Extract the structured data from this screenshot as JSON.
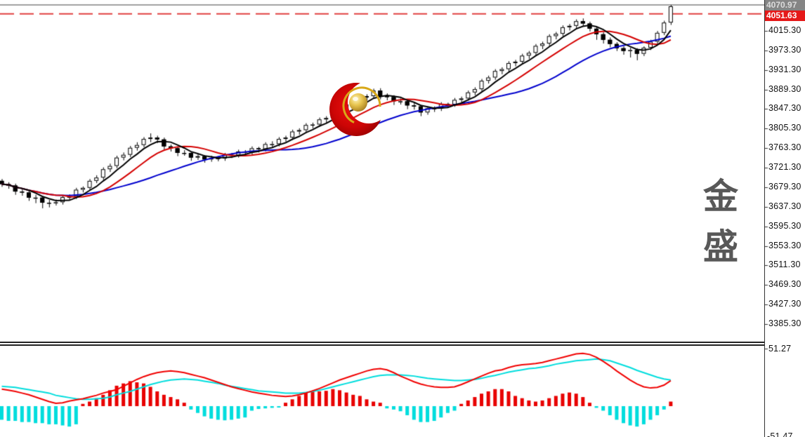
{
  "window": {
    "background": "#ffffff"
  },
  "watermark": {
    "text": "金盛",
    "logo": "red-crescent-gold-ball"
  },
  "main_axis": {
    "current_price_label": "4070.97",
    "hline_price_label": "4051.63",
    "tick_labels": [
      "4015.30",
      "3973.30",
      "3931.30",
      "3889.30",
      "3847.30",
      "3805.30",
      "3763.30",
      "3721.30",
      "3679.30",
      "3637.30",
      "3595.30",
      "3553.30",
      "3511.30",
      "3469.30",
      "3427.30",
      "3385.30"
    ]
  },
  "sub_axis": {
    "top_label": "51.27",
    "bottom_label_partial": "-51.47"
  },
  "colors": {
    "up_candle_fill": "#ffffff",
    "down_candle_fill": "#000000",
    "candle_outline": "#000000",
    "ma_fast": "#000000",
    "ma_mid": "#d40000",
    "ma_slow": "#0000cd",
    "dashed_hline": "#e04040",
    "current_price_line": "#a0a0a0",
    "dif_line": "#f00000",
    "dea_line": "#00dddd",
    "hist_up": "#e80000",
    "hist_down": "#00dddd",
    "current_label_bg": "#858585",
    "current_label_text": "#dcdcdc",
    "hline_label_bg": "#e51919",
    "hline_label_text": "#ffffff",
    "border": "#333333",
    "axis_text": "#111111"
  },
  "chart_data": {
    "type": "candlestick",
    "title": "",
    "main_panel": {
      "ylim": [
        3375,
        4080
      ],
      "y_ticks": [
        4015.3,
        3973.3,
        3931.3,
        3889.3,
        3847.3,
        3805.3,
        3763.3,
        3721.3,
        3679.3,
        3637.3,
        3595.3,
        3553.3,
        3511.3,
        3469.3,
        3427.3,
        3385.3
      ],
      "current_price": 4070.97,
      "horizontal_line": 4051.63,
      "ma_periods": [
        5,
        10,
        21
      ],
      "ohlc": [
        [
          3693,
          3697,
          3680,
          3686
        ],
        [
          3686,
          3690,
          3676,
          3683
        ],
        [
          3683,
          3687,
          3663,
          3670
        ],
        [
          3670,
          3675,
          3661,
          3668
        ],
        [
          3668,
          3671,
          3650,
          3657
        ],
        [
          3657,
          3663,
          3645,
          3657
        ],
        [
          3657,
          3660,
          3634,
          3646
        ],
        [
          3646,
          3652,
          3636,
          3646
        ],
        [
          3646,
          3653,
          3640,
          3647
        ],
        [
          3647,
          3661,
          3642,
          3658
        ],
        [
          3658,
          3664,
          3651,
          3659
        ],
        [
          3659,
          3678,
          3654,
          3674
        ],
        [
          3674,
          3681,
          3668,
          3678
        ],
        [
          3678,
          3697,
          3673,
          3693
        ],
        [
          3693,
          3705,
          3688,
          3700
        ],
        [
          3700,
          3722,
          3695,
          3718
        ],
        [
          3718,
          3730,
          3712,
          3725
        ],
        [
          3725,
          3747,
          3720,
          3743
        ],
        [
          3743,
          3754,
          3737,
          3749
        ],
        [
          3749,
          3768,
          3744,
          3764
        ],
        [
          3764,
          3776,
          3758,
          3770
        ],
        [
          3770,
          3787,
          3765,
          3783
        ],
        [
          3783,
          3795,
          3776,
          3786
        ],
        [
          3786,
          3790,
          3774,
          3782
        ],
        [
          3782,
          3786,
          3760,
          3767
        ],
        [
          3767,
          3771,
          3756,
          3763
        ],
        [
          3763,
          3766,
          3746,
          3753
        ],
        [
          3753,
          3759,
          3747,
          3753
        ],
        [
          3753,
          3756,
          3736,
          3743
        ],
        [
          3743,
          3750,
          3738,
          3746
        ],
        [
          3746,
          3748,
          3732,
          3739
        ],
        [
          3739,
          3747,
          3734,
          3742
        ],
        [
          3742,
          3746,
          3735,
          3741
        ],
        [
          3741,
          3753,
          3736,
          3749
        ],
        [
          3749,
          3753,
          3742,
          3748
        ],
        [
          3748,
          3760,
          3743,
          3756
        ],
        [
          3756,
          3759,
          3748,
          3754
        ],
        [
          3754,
          3767,
          3749,
          3763
        ],
        [
          3763,
          3766,
          3754,
          3761
        ],
        [
          3761,
          3776,
          3756,
          3772
        ],
        [
          3772,
          3778,
          3765,
          3772
        ],
        [
          3772,
          3787,
          3767,
          3783
        ],
        [
          3783,
          3790,
          3777,
          3786
        ],
        [
          3786,
          3803,
          3781,
          3799
        ],
        [
          3799,
          3806,
          3792,
          3802
        ],
        [
          3802,
          3817,
          3797,
          3813
        ],
        [
          3813,
          3818,
          3806,
          3814
        ],
        [
          3814,
          3829,
          3809,
          3825
        ],
        [
          3825,
          3832,
          3818,
          3828
        ],
        [
          3828,
          3845,
          3823,
          3841
        ],
        [
          3841,
          3848,
          3834,
          3844
        ],
        [
          3844,
          3861,
          3839,
          3857
        ],
        [
          3857,
          3864,
          3850,
          3860
        ],
        [
          3860,
          3876,
          3855,
          3872
        ],
        [
          3872,
          3879,
          3865,
          3875
        ],
        [
          3875,
          3891,
          3870,
          3887
        ],
        [
          3887,
          3892,
          3868,
          3875
        ],
        [
          3875,
          3881,
          3866,
          3873
        ],
        [
          3873,
          3877,
          3856,
          3864
        ],
        [
          3864,
          3870,
          3857,
          3864
        ],
        [
          3864,
          3867,
          3847,
          3855
        ],
        [
          3855,
          3861,
          3846,
          3853
        ],
        [
          3853,
          3856,
          3832,
          3840
        ],
        [
          3840,
          3853,
          3835,
          3849
        ],
        [
          3849,
          3853,
          3841,
          3848
        ],
        [
          3848,
          3862,
          3843,
          3858
        ],
        [
          3858,
          3861,
          3850,
          3857
        ],
        [
          3857,
          3871,
          3852,
          3867
        ],
        [
          3867,
          3874,
          3861,
          3870
        ],
        [
          3870,
          3887,
          3865,
          3883
        ],
        [
          3883,
          3894,
          3877,
          3890
        ],
        [
          3890,
          3912,
          3885,
          3908
        ],
        [
          3908,
          3919,
          3902,
          3915
        ],
        [
          3915,
          3933,
          3910,
          3929
        ],
        [
          3929,
          3937,
          3922,
          3933
        ],
        [
          3933,
          3950,
          3928,
          3946
        ],
        [
          3946,
          3953,
          3939,
          3949
        ],
        [
          3949,
          3966,
          3944,
          3962
        ],
        [
          3962,
          3972,
          3955,
          3968
        ],
        [
          3968,
          3987,
          3963,
          3983
        ],
        [
          3983,
          3992,
          3976,
          3988
        ],
        [
          3988,
          4008,
          3983,
          4004
        ],
        [
          4004,
          4013,
          3997,
          4009
        ],
        [
          4009,
          4027,
          4004,
          4023
        ],
        [
          4023,
          4030,
          4016,
          4026
        ],
        [
          4026,
          4040,
          4021,
          4036
        ],
        [
          4036,
          4042,
          4025,
          4031
        ],
        [
          4031,
          4035,
          4014,
          4020
        ],
        [
          4020,
          4024,
          3996,
          4008
        ],
        [
          4008,
          4012,
          3988,
          3996
        ],
        [
          3996,
          4001,
          3980,
          3987
        ],
        [
          3987,
          3991,
          3972,
          3978
        ],
        [
          3978,
          3982,
          3964,
          3972
        ],
        [
          3972,
          3979,
          3958,
          3974
        ],
        [
          3974,
          3978,
          3952,
          3966
        ],
        [
          3966,
          3982,
          3961,
          3979
        ],
        [
          3979,
          3996,
          3974,
          3992
        ],
        [
          3992,
          4015,
          3987,
          4011
        ],
        [
          4011,
          4037,
          4006,
          4033
        ],
        [
          4033,
          4071,
          4028,
          4068
        ]
      ]
    },
    "sub_panel": {
      "type": "macd",
      "scale_top": 51.27,
      "dif": [
        15,
        14,
        13,
        11.5,
        10,
        8,
        6,
        4,
        2.5,
        3,
        4.5,
        5.5,
        6.5,
        8,
        9.5,
        11.5,
        13,
        14.5,
        17.5,
        20.5,
        23.5,
        26,
        28,
        29.5,
        30.5,
        31,
        30.5,
        29.5,
        28,
        26.5,
        25,
        23,
        21,
        19,
        17,
        15.5,
        14,
        12.5,
        11.5,
        10.5,
        9.5,
        9,
        8.5,
        9,
        10,
        11.5,
        13.5,
        15.5,
        18,
        20.5,
        23,
        25,
        27,
        29,
        31,
        32.5,
        33,
        32,
        29.5,
        26.5,
        24,
        21.5,
        19.5,
        18,
        17,
        16.5,
        16.5,
        17,
        19,
        21.5,
        24,
        26.5,
        29,
        31,
        32,
        34,
        35.5,
        36.5,
        37,
        37.5,
        38.5,
        40,
        41.5,
        43,
        44.5,
        46,
        46.5,
        45.5,
        43,
        39.5,
        35.5,
        31,
        27,
        23,
        19.5,
        17,
        16,
        16.5,
        18.5,
        22.5
      ],
      "dea": [
        17.5,
        17,
        16.5,
        15.5,
        14.5,
        13.5,
        12.5,
        11.5,
        9.5,
        8.5,
        7.5,
        6.5,
        6,
        6,
        6.5,
        7,
        8,
        10,
        11.5,
        13,
        15,
        17,
        19,
        20.5,
        22,
        23,
        23.5,
        24,
        23.5,
        23,
        22,
        21,
        20,
        18.5,
        17.5,
        16.5,
        15.5,
        14.5,
        13.5,
        13,
        12.5,
        12,
        11.5,
        11.5,
        11.5,
        12,
        13,
        14,
        15.5,
        17,
        18.5,
        20,
        21.5,
        23,
        24.5,
        26,
        27,
        27.5,
        27.5,
        27.5,
        27,
        26.5,
        25.5,
        24.5,
        24,
        23.5,
        23,
        22.5,
        22.5,
        23,
        23.5,
        24.5,
        26,
        27,
        28.5,
        30,
        31,
        32,
        33,
        33.5,
        34.5,
        35.5,
        37,
        38,
        39,
        40,
        40.5,
        41,
        41.5,
        41,
        40,
        38,
        36,
        34,
        31.5,
        29.5,
        27.5,
        25.5,
        24,
        23
      ],
      "hist": [
        -12,
        -13,
        -13,
        -14,
        -14,
        -15,
        -15,
        -16,
        -16,
        -17,
        -18,
        -16,
        2,
        4,
        7,
        10,
        14,
        18,
        20,
        22,
        21,
        20,
        17,
        13,
        10,
        8,
        6,
        3,
        -3,
        -6,
        -9,
        -11,
        -12,
        -12.5,
        -12,
        -11,
        -10,
        -4,
        -2.5,
        -2,
        -1.5,
        -1,
        3,
        6,
        9,
        12,
        13,
        13,
        13.5,
        15,
        14,
        12,
        10,
        9,
        6,
        4,
        3,
        -2,
        -3,
        -4.5,
        -8,
        -12,
        -14,
        -14,
        -13,
        -10,
        -6,
        -4,
        2,
        5,
        8,
        11,
        13,
        15,
        15,
        13,
        9,
        7,
        5,
        4,
        5,
        7,
        9,
        11,
        12,
        11,
        8,
        3,
        -1.5,
        -4,
        -8,
        -12,
        -15,
        -17,
        -18,
        -16,
        -12,
        -8,
        -3,
        4
      ]
    }
  }
}
